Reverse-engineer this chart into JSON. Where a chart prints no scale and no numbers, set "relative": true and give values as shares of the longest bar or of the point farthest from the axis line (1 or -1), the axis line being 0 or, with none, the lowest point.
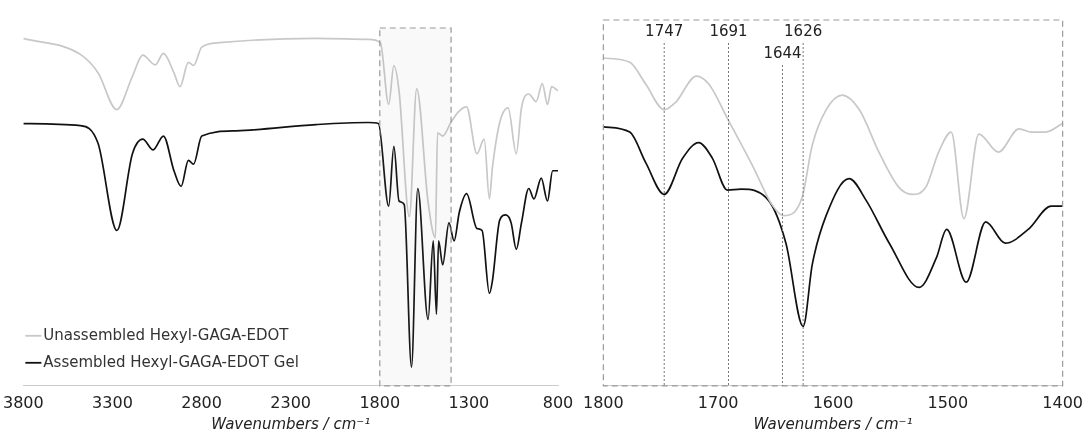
{
  "chart_data": [
    {
      "type": "line",
      "relative": true,
      "xlabel": "Wavenumbers / cm⁻¹",
      "xlim": [
        3800,
        800
      ],
      "xticks": [
        3800,
        3300,
        2800,
        2300,
        1800,
        1300,
        800
      ],
      "legend": "bottom left",
      "bands": [
        {
          "axis": "x",
          "from": 1800,
          "to": 1400,
          "color": "#999999"
        }
      ],
      "series": [
        {
          "name": "Unassembled Hexyl-GAGA-EDOT",
          "color": "#c8c8c8",
          "x": [
            3800,
            3480,
            3381,
            3276,
            3188,
            3130,
            3060,
            3014,
            2955,
            2921,
            2874,
            2845,
            2799,
            2699,
            2158,
            1866,
            1797,
            1750,
            1721,
            1692,
            1634,
            1593,
            1529,
            1488,
            1476,
            1447,
            1401,
            1360,
            1313,
            1255,
            1214,
            1185,
            1168,
            1127,
            1080,
            1034,
            1005,
            964,
            923,
            888,
            859,
            836,
            800
          ],
          "values": [
            1.0,
            0.954,
            0.901,
            0.795,
            0.891,
            0.952,
            0.924,
            0.957,
            0.901,
            0.861,
            0.931,
            0.922,
            0.975,
            0.988,
            1.0,
            0.997,
            0.988,
            0.81,
            0.922,
            0.849,
            0.487,
            0.855,
            0.529,
            0.426,
            0.728,
            0.719,
            0.758,
            0.788,
            0.803,
            0.668,
            0.71,
            0.538,
            0.628,
            0.758,
            0.8,
            0.668,
            0.8,
            0.84,
            0.818,
            0.87,
            0.81,
            0.861,
            0.849
          ]
        },
        {
          "name": "Assembled Hexyl-GAGA-EDOT Gel",
          "color": "#111111",
          "x": [
            3800,
            3480,
            3381,
            3275,
            3188,
            3130,
            3072,
            3014,
            2955,
            2915,
            2874,
            2845,
            2799,
            2606,
            2158,
            1866,
            1808,
            1750,
            1721,
            1692,
            1663,
            1622,
            1587,
            1529,
            1500,
            1482,
            1470,
            1447,
            1412,
            1383,
            1354,
            1313,
            1255,
            1226,
            1185,
            1168,
            1127,
            1092,
            1063,
            1034,
            1005,
            964,
            935,
            894,
            859,
            830,
            800
          ],
          "values": [
            0.755,
            0.749,
            0.698,
            0.447,
            0.668,
            0.71,
            0.679,
            0.719,
            0.619,
            0.574,
            0.649,
            0.638,
            0.719,
            0.734,
            0.752,
            0.758,
            0.755,
            0.517,
            0.689,
            0.532,
            0.522,
            0.054,
            0.568,
            0.191,
            0.417,
            0.206,
            0.417,
            0.348,
            0.469,
            0.417,
            0.499,
            0.553,
            0.453,
            0.447,
            0.266,
            0.302,
            0.477,
            0.492,
            0.469,
            0.393,
            0.469,
            0.568,
            0.538,
            0.598,
            0.532,
            0.619,
            0.619
          ]
        }
      ]
    },
    {
      "type": "line",
      "relative": true,
      "xlabel": "Wavenumbers / cm⁻¹",
      "xlim": [
        1800,
        1400
      ],
      "xticks": [
        1800,
        1700,
        1600,
        1500,
        1400
      ],
      "ref_lines": [
        {
          "axis": "x",
          "value": 1747,
          "label": "1747",
          "color": "#777777",
          "line_style": "dotted"
        },
        {
          "axis": "x",
          "value": 1691,
          "label": "1691",
          "color": "#777777",
          "line_style": "dotted"
        },
        {
          "axis": "x",
          "value": 1626,
          "label": "1626",
          "color": "#777777",
          "line_style": "dotted"
        },
        {
          "axis": "x",
          "value": 1644,
          "label": "1644",
          "color": "#777777",
          "line_style": "dotted"
        }
      ],
      "series": [
        {
          "color": "#c8c8c8",
          "x": [
            1800,
            1777,
            1763,
            1747,
            1737,
            1719,
            1708,
            1692,
            1670,
            1653,
            1643,
            1627,
            1618,
            1606,
            1592,
            1577,
            1560,
            1543,
            1531,
            1519,
            1508,
            1497,
            1486,
            1473,
            1456,
            1438,
            1427,
            1415,
            1400
          ],
          "values": [
            1.0,
            0.987,
            0.92,
            0.842,
            0.865,
            0.945,
            0.92,
            0.816,
            0.671,
            0.552,
            0.519,
            0.574,
            0.735,
            0.842,
            0.887,
            0.842,
            0.713,
            0.607,
            0.584,
            0.607,
            0.713,
            0.774,
            0.51,
            0.768,
            0.713,
            0.784,
            0.774,
            0.774,
            0.8
          ]
        },
        {
          "color": "#111111",
          "x": [
            1800,
            1777,
            1763,
            1747,
            1731,
            1717,
            1705,
            1692,
            1680,
            1656,
            1641,
            1626,
            1618,
            1606,
            1586,
            1571,
            1551,
            1525,
            1510,
            1501,
            1484,
            1467,
            1450,
            1430,
            1410,
            1400
          ],
          "values": [
            0.79,
            0.774,
            0.68,
            0.584,
            0.694,
            0.742,
            0.694,
            0.597,
            0.6,
            0.565,
            0.435,
            0.181,
            0.371,
            0.519,
            0.632,
            0.565,
            0.435,
            0.3,
            0.39,
            0.477,
            0.316,
            0.5,
            0.435,
            0.477,
            0.548,
            0.548
          ]
        }
      ]
    }
  ]
}
